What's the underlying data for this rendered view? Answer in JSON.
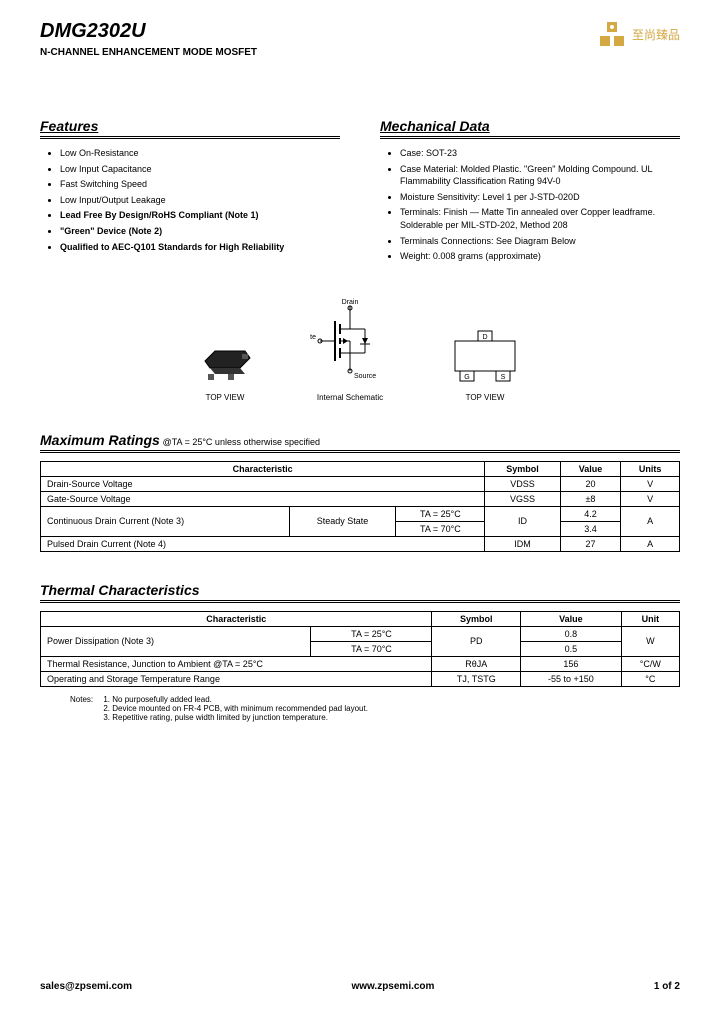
{
  "header": {
    "part_number": "DMG2302U",
    "subtitle": "N-CHANNEL ENHANCEMENT MODE MOSFET",
    "logo_text": "至尚臻品"
  },
  "features": {
    "title": "Features",
    "items": [
      {
        "text": "Low On-Resistance",
        "bold": false
      },
      {
        "text": "Low Input Capacitance",
        "bold": false
      },
      {
        "text": "Fast Switching Speed",
        "bold": false
      },
      {
        "text": "Low Input/Output Leakage",
        "bold": false
      },
      {
        "text": "Lead Free By Design/RoHS Compliant (Note 1)",
        "bold": true
      },
      {
        "text": "\"Green\" Device (Note 2)",
        "bold": true
      },
      {
        "text": "Qualified to AEC-Q101 Standards for High Reliability",
        "bold": true
      }
    ]
  },
  "mechanical": {
    "title": "Mechanical Data",
    "items": [
      "Case: SOT-23",
      "Case Material: Molded Plastic. \"Green\" Molding Compound. UL Flammability Classification Rating 94V-0",
      "Moisture Sensitivity: Level 1 per J-STD-020D",
      "Terminals: Finish — Matte Tin annealed over Copper leadframe. Solderable per MIL-STD-202, Method 208",
      "Terminals Connections: See Diagram Below",
      "Weight: 0.008 grams (approximate)"
    ]
  },
  "diagrams": {
    "top_view1": "TOP VIEW",
    "schematic": "Internal Schematic",
    "top_view2": "TOP VIEW",
    "drain": "Drain",
    "gate": "Gate",
    "source": "Source",
    "d": "D",
    "g": "G",
    "s": "S"
  },
  "max_ratings": {
    "title": "Maximum Ratings",
    "condition": "@TA = 25°C unless otherwise specified",
    "headers": [
      "Characteristic",
      "Symbol",
      "Value",
      "Units"
    ],
    "rows": [
      {
        "char": "Drain-Source Voltage",
        "sym": "VDSS",
        "val": "20",
        "unit": "V"
      },
      {
        "char": "Gate-Source Voltage",
        "sym": "VGSS",
        "val": "±8",
        "unit": "V"
      }
    ],
    "drain_current": {
      "char": "Continuous Drain Current (Note 3)",
      "state": "Steady State",
      "ta25": "TA = 25°C",
      "ta70": "TA = 70°C",
      "sym": "ID",
      "val25": "4.2",
      "val70": "3.4",
      "unit": "A"
    },
    "pulsed": {
      "char": "Pulsed Drain Current (Note 4)",
      "sym": "IDM",
      "val": "27",
      "unit": "A"
    }
  },
  "thermal": {
    "title": "Thermal Characteristics",
    "headers": [
      "Characteristic",
      "Symbol",
      "Value",
      "Unit"
    ],
    "power_diss": {
      "char": "Power Dissipation (Note 3)",
      "ta25": "TA = 25°C",
      "ta70": "TA = 70°C",
      "sym": "PD",
      "val25": "0.8",
      "val70": "0.5",
      "unit": "W"
    },
    "rows": [
      {
        "char": "Thermal Resistance, Junction to Ambient @TA = 25°C",
        "sym": "RθJA",
        "val": "156",
        "unit": "°C/W"
      },
      {
        "char": "Operating and Storage Temperature Range",
        "sym": "TJ, TSTG",
        "val": "-55 to +150",
        "unit": "°C"
      }
    ]
  },
  "notes": {
    "label": "Notes:",
    "items": [
      "1. No purposefully added lead.",
      "2. Device mounted on FR-4 PCB, with minimum recommended pad layout.",
      "3. Repetitive rating, pulse width limited by junction temperature."
    ]
  },
  "footer": {
    "email": "sales@zpsemi.com",
    "website": "www.zpsemi.com",
    "page": "1 of 2"
  },
  "colors": {
    "logo": "#d4a843",
    "text": "#000000",
    "bg": "#ffffff"
  }
}
